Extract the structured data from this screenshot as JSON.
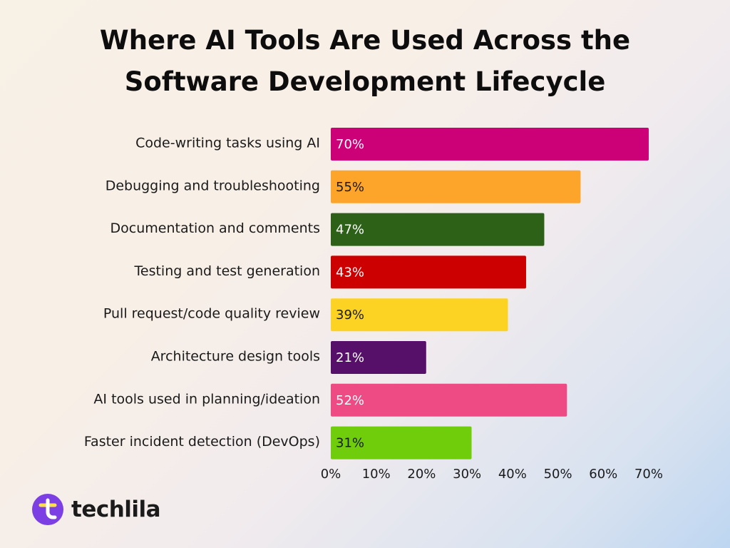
{
  "title_lines": [
    "Where AI Tools Are Used Across the",
    "Software Development Lifecycle"
  ],
  "brand": {
    "name": "techlila",
    "logo_icon": "techlila-logo-icon",
    "logo_color": "#7b3fe4"
  },
  "chart_data": {
    "type": "bar",
    "orientation": "horizontal",
    "title": "Where AI Tools Are Used Across the Software Development Lifecycle",
    "categories": [
      "Code-writing tasks using AI",
      "Debugging and troubleshooting",
      "Documentation and comments",
      "Testing and test generation",
      "Pull request/code quality review",
      "Architecture design tools",
      "AI tools used in planning/ideation",
      "Faster incident detection (DevOps)"
    ],
    "values": [
      70,
      55,
      47,
      43,
      39,
      21,
      52,
      31
    ],
    "value_labels": [
      "70%",
      "55%",
      "47%",
      "43%",
      "39%",
      "21%",
      "52%",
      "31%"
    ],
    "colors": [
      "#cc0077",
      "#fca52a",
      "#2d6118",
      "#cc0000",
      "#fdd323",
      "#57106a",
      "#ee4b84",
      "#6fcd0c"
    ],
    "label_colors": [
      "#ffffff",
      "#1a1a1a",
      "#ffffff",
      "#ffffff",
      "#1a1a1a",
      "#ffffff",
      "#ffffff",
      "#1a1a1a"
    ],
    "xlim": [
      0,
      70
    ],
    "xticks": [
      "0%",
      "10%",
      "20%",
      "30%",
      "40%",
      "50%",
      "60%",
      "70%"
    ],
    "grid": false,
    "legend": "none"
  }
}
